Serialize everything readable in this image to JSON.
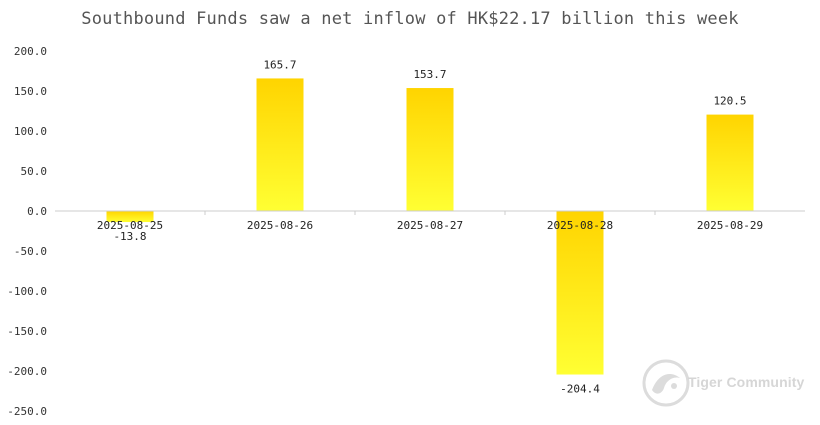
{
  "chart_data": {
    "type": "bar",
    "title": "Southbound Funds saw a net inflow of HK$22.17 billion this week",
    "categories": [
      "2025-08-25",
      "2025-08-26",
      "2025-08-27",
      "2025-08-28",
      "2025-08-29"
    ],
    "values": [
      -13.8,
      165.7,
      153.7,
      -204.4,
      120.5
    ],
    "value_labels": [
      "-13.8",
      "165.7",
      "153.7",
      "-204.4",
      "120.5"
    ],
    "ylim": [
      -250,
      200
    ],
    "yticks": [
      200,
      150,
      100,
      50,
      0,
      -50,
      -100,
      -150,
      -200,
      -250
    ],
    "ytick_labels": [
      "200.0",
      "150.0",
      "100.0",
      "50.0",
      "0.0",
      "-50.0",
      "-100.0",
      "-150.0",
      "-200.0",
      "-250.0"
    ],
    "xlabel": "",
    "ylabel": "",
    "grid": false,
    "bar_color_top": "#ffd400",
    "bar_color_bottom": "#ffff33"
  },
  "watermark": {
    "text": "Tiger Community",
    "icon": "tiger-logo-icon"
  }
}
